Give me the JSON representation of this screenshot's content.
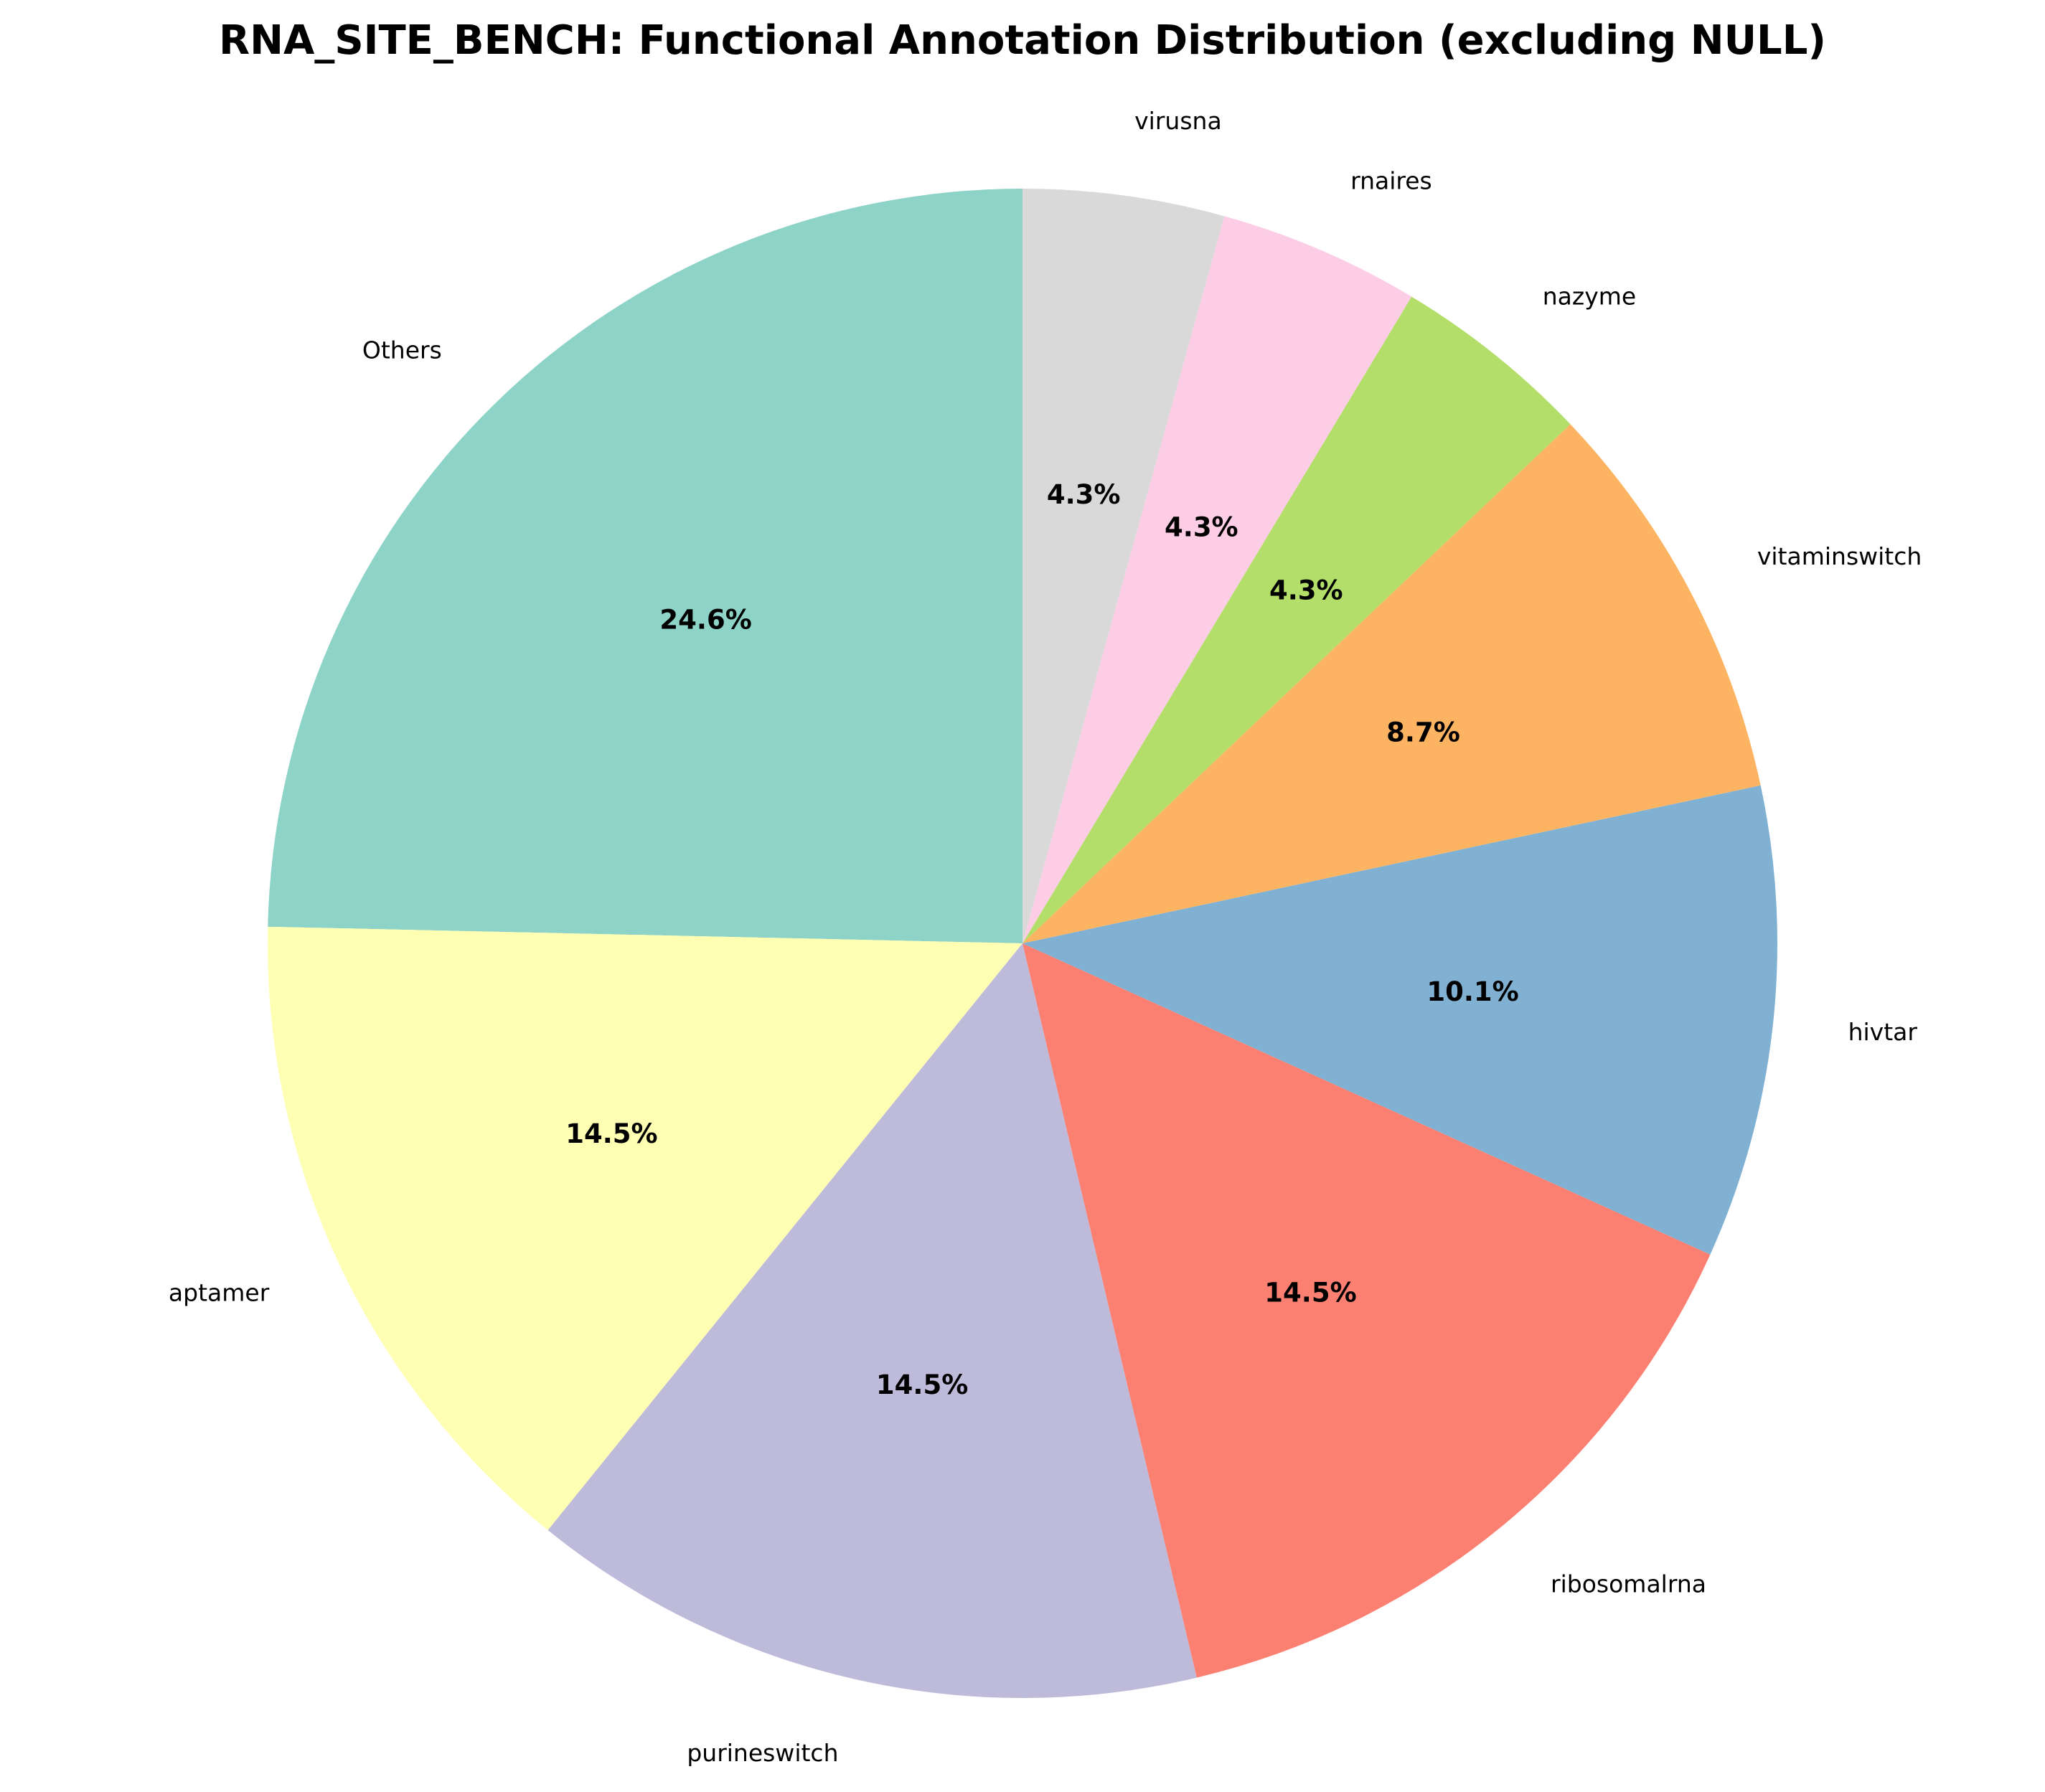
{
  "chart_data": {
    "type": "pie",
    "title": "RNA_SITE_BENCH: Functional Annotation Distribution (excluding NULL)",
    "start_angle_deg": 90,
    "direction": "counterclockwise",
    "slices": [
      {
        "label": "Others",
        "value": 24.6,
        "pct_label": "24.6%",
        "color": "#8dd3c7"
      },
      {
        "label": "aptamer",
        "value": 14.5,
        "pct_label": "14.5%",
        "color": "#ffffb3"
      },
      {
        "label": "purineswitch",
        "value": 14.5,
        "pct_label": "14.5%",
        "color": "#bebada"
      },
      {
        "label": "ribosomalrna",
        "value": 14.5,
        "pct_label": "14.5%",
        "color": "#fb8072"
      },
      {
        "label": "hivtar",
        "value": 10.1,
        "pct_label": "10.1%",
        "color": "#80b1d3"
      },
      {
        "label": "vitaminswitch",
        "value": 8.7,
        "pct_label": "8.7%",
        "color": "#fdb462"
      },
      {
        "label": "nazyme",
        "value": 4.3,
        "pct_label": "4.3%",
        "color": "#b3de69"
      },
      {
        "label": "rnaires",
        "value": 4.3,
        "pct_label": "4.3%",
        "color": "#fccde5"
      },
      {
        "label": "virusna",
        "value": 4.3,
        "pct_label": "4.3%",
        "color": "#d9d9d9"
      }
    ]
  }
}
